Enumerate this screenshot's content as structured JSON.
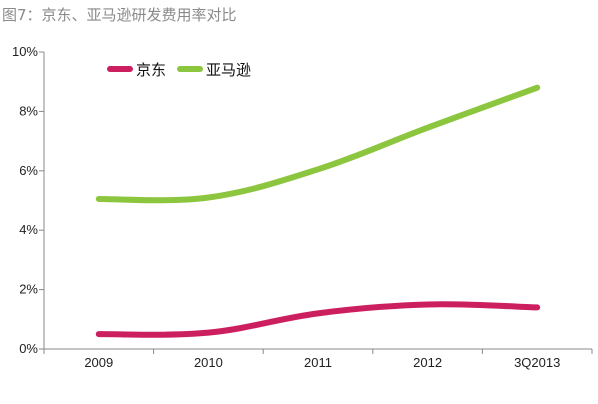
{
  "title": "图7：京东、亚马逊研发费用率对比",
  "chart_data": {
    "type": "line",
    "title": "图7：京东、亚马逊研发费用率对比",
    "x": [
      "2009",
      "2010",
      "2011",
      "2012",
      "3Q2013"
    ],
    "series": [
      {
        "name": "京东",
        "values": [
          0.5,
          0.55,
          1.2,
          1.5,
          1.4
        ],
        "color": "#cc1f5f"
      },
      {
        "name": "亚马逊",
        "values": [
          5.05,
          5.1,
          6.05,
          7.45,
          8.8
        ],
        "color": "#8cc63f"
      }
    ],
    "ylim": [
      0,
      10
    ],
    "yticks": [
      "0%",
      "2%",
      "4%",
      "6%",
      "8%",
      "10%"
    ],
    "grid": false,
    "legend_position": "top-left"
  }
}
